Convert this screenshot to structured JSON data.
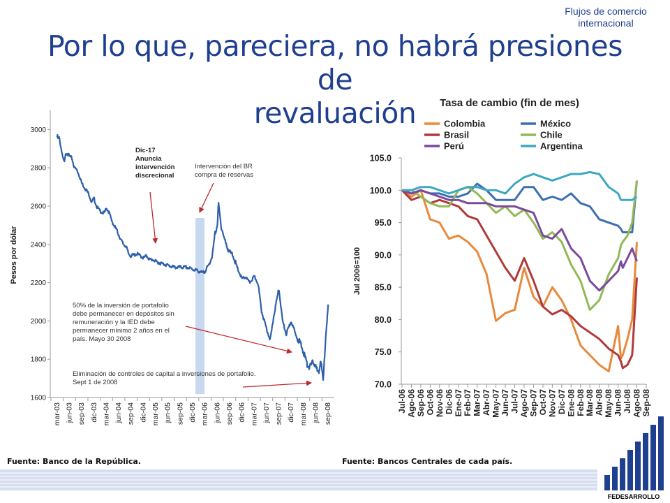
{
  "header": {
    "section": "Flujos de comercio internacional",
    "title_line1": "Por lo que, pareciera, no habrá presiones de",
    "title_line2": "revaluación"
  },
  "left_chart": {
    "ylabel": "Pesos por dólar",
    "annotations": {
      "dec17": [
        "Dic-17",
        "Anuncia",
        "intervención",
        "discrecional"
      ],
      "br": [
        "Intervención del BR",
        "compra de reservas"
      ],
      "portfolio": [
        "50% de la inversión de portafolio",
        "debe permanecer en depósitos sin",
        "remuneración y la IED debe",
        "permanecer mínimo 2 años en el",
        "país. Mayo 30 2008"
      ],
      "controls": [
        "Eliminación de controles de capital a inversiones de portafolio.",
        "Sept 1 de 2008"
      ]
    }
  },
  "right_chart": {
    "title": "Tasa de cambio (fin de mes)",
    "ylabel": "Jul 2006=100"
  },
  "footer": {
    "source_left": "Fuente: Banco de la República.",
    "source_right": "Fuente: Bancos Centrales de cada país.",
    "logo": "FEDESARROLLO"
  },
  "colors": {
    "title": "#1f3f8f",
    "colombia_line": "#2e5fa8",
    "band": "#c8d8ef",
    "arrow": "#c0282c",
    "Colombia": "#e8893c",
    "México": "#3d6fb0",
    "Brasil": "#b03a3a",
    "Chile": "#93b956",
    "Perú": "#7b4a9c",
    "Argentina": "#3ea8c0"
  },
  "chart_data": [
    {
      "type": "line",
      "title": "",
      "xlabel": "",
      "ylabel": "Pesos por dólar",
      "ylim": [
        1600,
        3100
      ],
      "yticks": [
        1600,
        1800,
        2000,
        2200,
        2400,
        2600,
        2800,
        3000
      ],
      "categories": [
        "mar-03",
        "jun-03",
        "sep-03",
        "dic-03",
        "mar-04",
        "jun-04",
        "sep-04",
        "dic-04",
        "mar-05",
        "jun-05",
        "sep-05",
        "dic-05",
        "mar-06",
        "jun-06",
        "sep-06",
        "dic-06",
        "mar-07",
        "jun-07",
        "sep-07",
        "dic-07",
        "mar-08",
        "jun-08",
        "sep-08"
      ],
      "x": [
        0,
        0.03,
        0.05,
        0.12,
        0.15,
        0.2,
        0.3,
        0.4,
        0.5,
        0.6,
        0.7,
        0.8,
        1.0,
        1.2,
        1.4,
        1.6,
        1.8,
        2.0,
        2.2,
        2.4,
        2.6,
        2.8,
        3.0,
        3.2,
        3.4,
        3.6,
        3.8,
        4.0,
        4.2,
        4.4,
        4.6,
        4.8,
        5.0,
        5.2,
        5.4,
        5.6,
        5.8,
        6.0,
        6.5,
        7.0,
        7.3,
        7.5,
        7.8,
        8.0,
        8.5,
        9.0,
        9.5,
        10.0,
        10.5,
        11.0,
        11.5,
        11.8,
        12.0,
        12.3,
        12.6,
        12.8,
        13.0,
        13.1,
        13.3,
        13.5,
        13.7,
        14.0,
        14.3,
        14.6,
        15.0,
        15.3,
        15.6,
        16.0,
        16.3,
        16.6,
        17.0,
        17.3,
        17.6,
        18.0,
        18.3,
        18.6,
        19.0,
        19.3,
        19.6,
        20.0,
        20.3,
        20.6,
        20.8,
        21.0,
        21.2,
        21.4,
        21.6,
        21.8,
        22.0
      ],
      "series": [
        {
          "name": "",
          "values": [
            2960,
            2965,
            2955,
            2950,
            2960,
            2945,
            2910,
            2880,
            2840,
            2830,
            2870,
            2880,
            2860,
            2850,
            2800,
            2790,
            2760,
            2720,
            2700,
            2680,
            2660,
            2620,
            2640,
            2600,
            2580,
            2570,
            2560,
            2590,
            2570,
            2530,
            2500,
            2480,
            2450,
            2420,
            2400,
            2390,
            2350,
            2340,
            2350,
            2330,
            2340,
            2320,
            2320,
            2310,
            2300,
            2290,
            2280,
            2280,
            2280,
            2270,
            2260,
            2250,
            2260,
            2290,
            2340,
            2450,
            2500,
            2610,
            2500,
            2450,
            2400,
            2360,
            2340,
            2280,
            2220,
            2230,
            2200,
            2230,
            2200,
            2050,
            1960,
            1900,
            2030,
            2170,
            2000,
            1930,
            2000,
            1940,
            1900,
            1840,
            1770,
            1760,
            1790,
            1760,
            1720,
            1800,
            1680,
            1920,
            2070
          ]
        }
      ]
    },
    {
      "type": "line",
      "title": "Tasa de cambio (fin de mes)",
      "xlabel": "",
      "ylabel": "Jul 2006=100",
      "ylim": [
        70,
        105
      ],
      "yticks": [
        70.0,
        75.0,
        80.0,
        85.0,
        90.0,
        95.0,
        100.0,
        105.0
      ],
      "categories": [
        "Jul-06",
        "Ago-06",
        "Sep-06",
        "Oct-06",
        "Nov-06",
        "Dic-06",
        "Ene-07",
        "Feb-07",
        "Mar-07",
        "Abr-07",
        "May-07",
        "Jun-07",
        "Jul-07",
        "Ago-07",
        "Sep-07",
        "Oct-07",
        "Nov-07",
        "Dic-07",
        "Ene-08",
        "Feb-08",
        "Mar-08",
        "Abr-08",
        "May-08",
        "Jun-08",
        "Jul-08",
        "Ago-08",
        "Sep-08"
      ],
      "x": [
        0,
        1,
        2,
        3,
        4,
        5,
        6,
        7,
        8,
        9,
        10,
        11,
        12,
        13,
        14,
        15,
        16,
        17,
        18,
        19,
        20,
        21,
        22,
        23,
        23.3,
        23.5,
        24,
        24.5,
        25
      ],
      "legend": "top",
      "series": [
        {
          "name": "Colombia",
          "values": [
            100.0,
            99.0,
            100.0,
            95.5,
            95.0,
            92.5,
            93.0,
            92.0,
            90.5,
            87.0,
            79.8,
            81.0,
            81.5,
            88.0,
            83.5,
            82.0,
            85.0,
            83.0,
            80.0,
            76.0,
            74.5,
            73.0,
            72.0,
            79.0,
            74.0,
            74.5,
            77.0,
            80.0,
            92.0
          ]
        },
        {
          "name": "México",
          "values": [
            100.0,
            99.5,
            100.0,
            99.5,
            99.5,
            99.0,
            99.0,
            99.5,
            101.0,
            100.0,
            98.5,
            98.5,
            98.5,
            100.5,
            100.5,
            98.5,
            99.0,
            98.5,
            99.5,
            98.0,
            97.5,
            95.5,
            95.0,
            94.5,
            94.0,
            93.5,
            93.5,
            93.5,
            101.5
          ]
        },
        {
          "name": "Brasil",
          "values": [
            100.0,
            98.5,
            99.0,
            98.0,
            98.5,
            98.0,
            97.5,
            96.0,
            95.5,
            93.0,
            90.5,
            88.0,
            86.0,
            89.5,
            86.0,
            82.0,
            80.8,
            81.5,
            80.5,
            79.0,
            78.0,
            77.0,
            75.5,
            74.5,
            73.5,
            72.5,
            73.0,
            74.5,
            86.5
          ]
        },
        {
          "name": "Chile",
          "values": [
            100.0,
            100.0,
            99.0,
            98.0,
            97.5,
            97.5,
            100.0,
            100.5,
            99.5,
            98.0,
            96.5,
            97.5,
            96.0,
            97.0,
            95.0,
            92.5,
            93.5,
            92.0,
            88.5,
            86.0,
            81.5,
            83.0,
            87.0,
            89.5,
            91.5,
            92.0,
            93.0,
            95.0,
            101.5
          ]
        },
        {
          "name": "Perú",
          "values": [
            100.0,
            99.5,
            100.0,
            99.5,
            99.0,
            98.5,
            98.5,
            98.0,
            98.0,
            98.0,
            97.5,
            97.5,
            97.5,
            97.0,
            96.5,
            93.0,
            92.5,
            94.0,
            91.0,
            89.5,
            86.0,
            84.5,
            86.0,
            87.5,
            89.0,
            88.0,
            89.5,
            91.0,
            89.0
          ]
        },
        {
          "name": "Argentina",
          "values": [
            100.0,
            100.0,
            100.5,
            100.5,
            100.0,
            99.5,
            100.0,
            100.5,
            100.5,
            100.0,
            100.0,
            99.5,
            101.0,
            102.0,
            102.5,
            102.0,
            101.5,
            102.0,
            102.5,
            102.5,
            102.8,
            102.5,
            100.5,
            99.5,
            98.5,
            98.5,
            98.5,
            98.5,
            99.0
          ]
        }
      ]
    }
  ]
}
